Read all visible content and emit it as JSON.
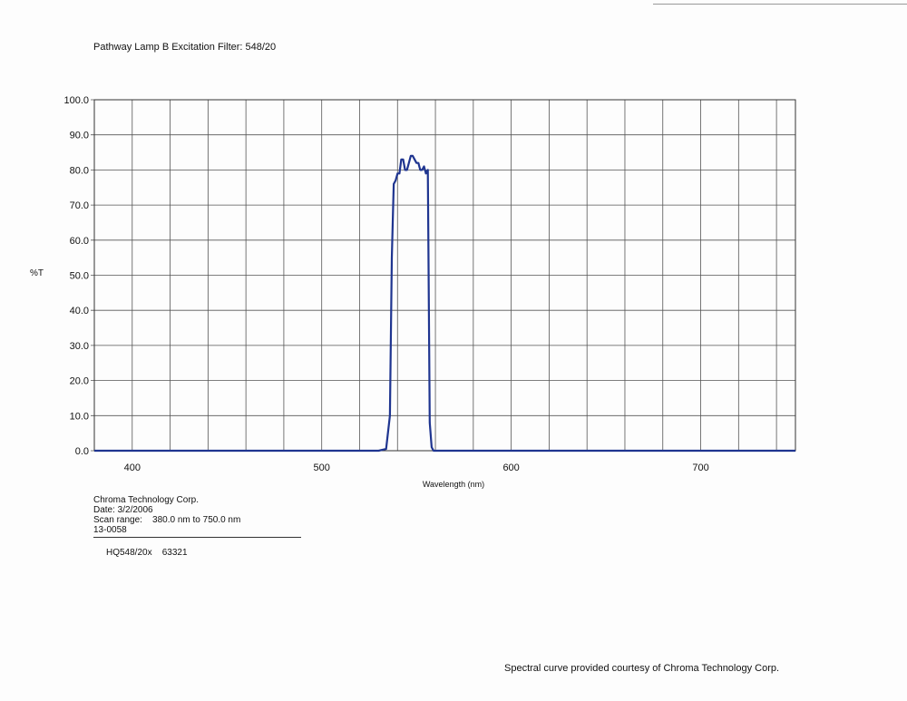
{
  "page": {
    "title": "Pathway Lamp B Excitation Filter: 548/20",
    "credit": "Spectral curve provided courtesy of Chroma Technology Corp."
  },
  "info": {
    "company": "Chroma Technology Corp.",
    "date": "Date: 3/2/2006",
    "scan_range": "Scan range:    380.0 nm to 750.0 nm",
    "code": "13-0058",
    "model": "HQ548/20x    63321"
  },
  "chart_data": {
    "type": "line",
    "title": "Pathway Lamp B Excitation Filter: 548/20",
    "xlabel": "Wavelength (nm)",
    "ylabel": "%T",
    "xlim": [
      380,
      750
    ],
    "ylim": [
      0,
      100
    ],
    "xticks": [
      400,
      500,
      600,
      700
    ],
    "yticks": [
      "0.0",
      "10.0",
      "20.0",
      "30.0",
      "40.0",
      "50.0",
      "60.0",
      "70.0",
      "80.0",
      "90.0",
      "100.0"
    ],
    "grid": true,
    "line_color": "#1f3590",
    "series": [
      {
        "x": [
          380,
          500,
          530,
          534,
          536,
          537,
          538,
          539,
          540,
          541,
          542,
          543,
          544,
          545,
          546,
          547,
          548,
          549,
          550,
          551,
          552,
          553,
          554,
          555,
          556,
          557,
          558,
          559,
          560,
          600,
          700,
          750
        ],
        "y": [
          0.0,
          0.0,
          0.0,
          0.5,
          10.0,
          55.0,
          76.0,
          77.0,
          79.0,
          79.0,
          83.0,
          83.0,
          80.0,
          80.0,
          82.0,
          84.0,
          84.0,
          83.0,
          82.0,
          82.0,
          80.0,
          80.0,
          81.0,
          79.0,
          80.0,
          8.0,
          1.0,
          0.0,
          0.0,
          0.0,
          0.0,
          0.0
        ]
      }
    ]
  }
}
